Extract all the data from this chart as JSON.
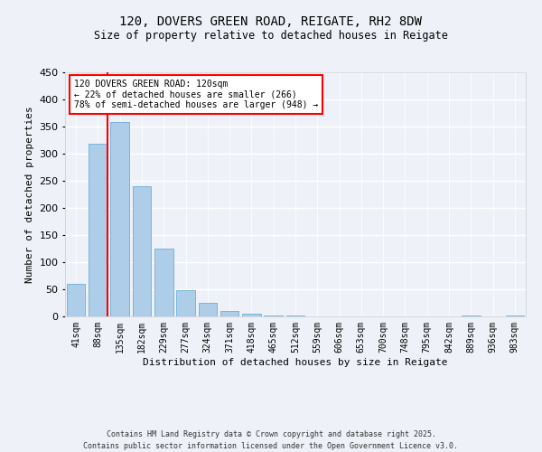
{
  "title_line1": "120, DOVERS GREEN ROAD, REIGATE, RH2 8DW",
  "title_line2": "Size of property relative to detached houses in Reigate",
  "xlabel": "Distribution of detached houses by size in Reigate",
  "ylabel": "Number of detached properties",
  "categories": [
    "41sqm",
    "88sqm",
    "135sqm",
    "182sqm",
    "229sqm",
    "277sqm",
    "324sqm",
    "371sqm",
    "418sqm",
    "465sqm",
    "512sqm",
    "559sqm",
    "606sqm",
    "653sqm",
    "700sqm",
    "748sqm",
    "795sqm",
    "842sqm",
    "889sqm",
    "936sqm",
    "983sqm"
  ],
  "values": [
    60,
    318,
    358,
    240,
    125,
    48,
    25,
    10,
    5,
    2,
    1,
    0,
    0,
    0,
    0,
    0,
    0,
    0,
    1,
    0,
    1
  ],
  "bar_color": "#aecde8",
  "bar_edgecolor": "#6aaed6",
  "vline_color": "red",
  "annotation_text": "120 DOVERS GREEN ROAD: 120sqm\n← 22% of detached houses are smaller (266)\n78% of semi-detached houses are larger (948) →",
  "annotation_box_color": "white",
  "annotation_box_edgecolor": "red",
  "ylim": [
    0,
    450
  ],
  "yticks": [
    0,
    50,
    100,
    150,
    200,
    250,
    300,
    350,
    400,
    450
  ],
  "footer_line1": "Contains HM Land Registry data © Crown copyright and database right 2025.",
  "footer_line2": "Contains public sector information licensed under the Open Government Licence v3.0.",
  "background_color": "#eef2f8",
  "grid_color": "white",
  "title_fontsize": 10,
  "subtitle_fontsize": 8.5,
  "axis_label_fontsize": 8,
  "tick_fontsize": 7,
  "annotation_fontsize": 7,
  "footer_fontsize": 6
}
